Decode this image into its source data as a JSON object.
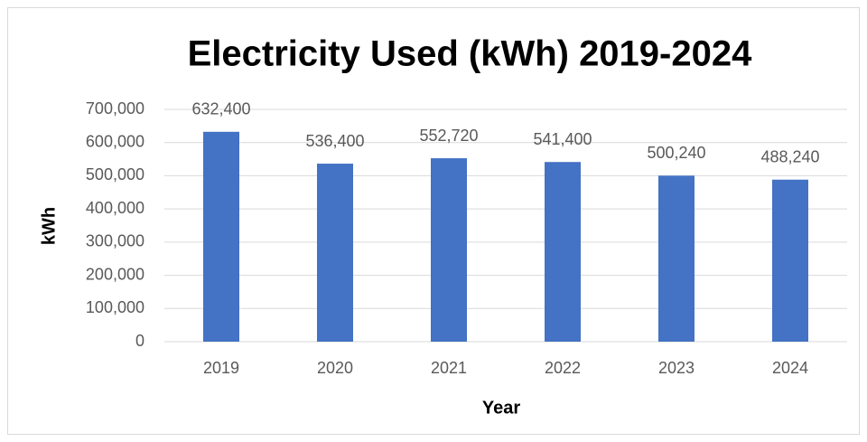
{
  "chart_data": {
    "type": "bar",
    "title": "Electricity Used (kWh) 2019-2024",
    "x_label": "Year",
    "y_label": "kWh",
    "categories": [
      "2019",
      "2020",
      "2021",
      "2022",
      "2023",
      "2024"
    ],
    "values": [
      632400,
      536400,
      552720,
      541400,
      500240,
      488240
    ],
    "value_labels": [
      "632,400",
      "536,400",
      "552,720",
      "541,400",
      "500,240",
      "488,240"
    ],
    "color": "#4472c4",
    "ylim": [
      0,
      700000
    ],
    "yticks": [
      0,
      {
        "value": 100000,
        "label": "100,000"
      },
      {
        "value": 200000,
        "label": "200,000"
      },
      {
        "value": 300000,
        "label": "300,000"
      },
      {
        "value": 400000,
        "label": "400,000"
      },
      {
        "value": 500000,
        "label": "500,000"
      },
      {
        "value": 600000,
        "label": "600,000"
      },
      {
        "value": 700000,
        "label": "700,000"
      }
    ],
    "grid": true
  }
}
